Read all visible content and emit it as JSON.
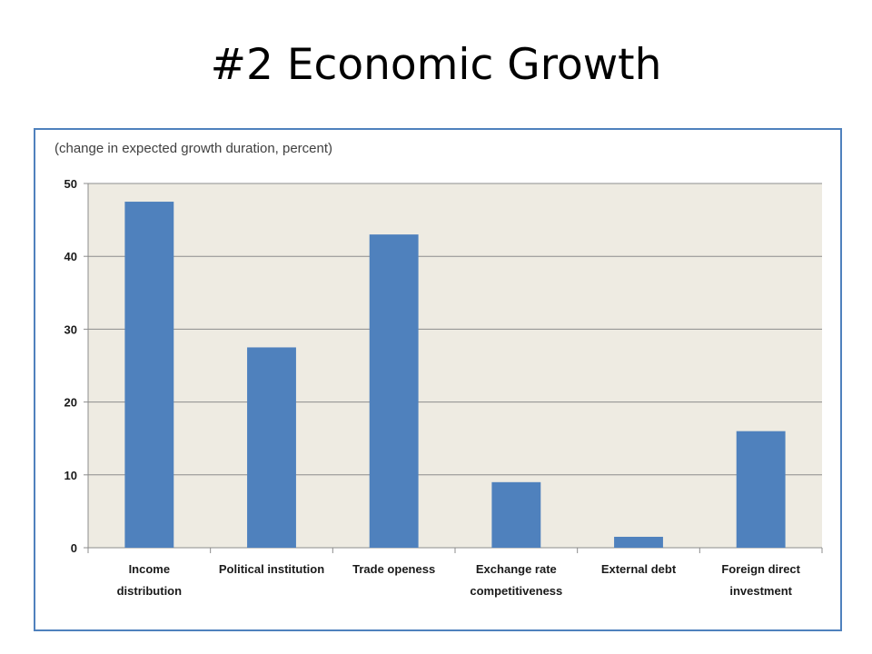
{
  "slide": {
    "title": "#2 Economic Growth"
  },
  "chart_data": {
    "type": "bar",
    "subtitle": "(change in expected growth duration, percent)",
    "categories": [
      [
        "Income",
        "distribution"
      ],
      [
        "Political institution"
      ],
      [
        "Trade openess"
      ],
      [
        "Exchange rate",
        "competitiveness"
      ],
      [
        "External debt"
      ],
      [
        "Foreign direct",
        "investment"
      ]
    ],
    "values": [
      47.5,
      27.5,
      43,
      9,
      1.5,
      16
    ],
    "ylim": [
      0,
      50
    ],
    "yticks": [
      0,
      10,
      20,
      30,
      40,
      50
    ],
    "grid": true,
    "colors": {
      "bar": "#4f81bd",
      "plot_bg": "#eeebe2",
      "grid": "#8c8c8c",
      "frame": "#4f81bd"
    }
  }
}
